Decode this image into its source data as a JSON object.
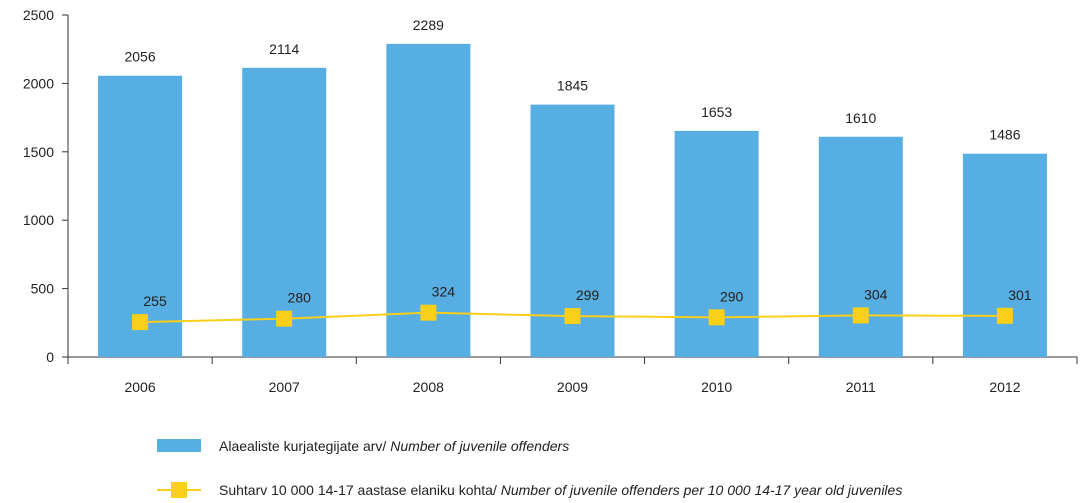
{
  "chart_data": {
    "type": "bar",
    "categories": [
      "2006",
      "2007",
      "2008",
      "2009",
      "2010",
      "2011",
      "2012"
    ],
    "ylim": [
      0,
      2500
    ],
    "yticks": [
      0,
      500,
      1000,
      1500,
      2000,
      2500
    ],
    "grid": false,
    "legend_placement": "bottom",
    "series": [
      {
        "name": "Alaealiste kurjategijate arv/ Number of juvenile offenders",
        "name_plain": "Alaealiste kurjategijate arv/ ",
        "name_italic": "Number of juvenile offenders",
        "type": "bar",
        "color": "#56aee2",
        "values": [
          2056,
          2114,
          2289,
          1845,
          1653,
          1610,
          1486
        ]
      },
      {
        "name": "Suhtarv 10 000 14-17 aastase elaniku kohta/ Number of juvenile offenders per 10 000 14-17 year old juveniles",
        "name_plain": "Suhtarv 10 000 14-17 aastase elaniku kohta/ ",
        "name_italic": "Number of juvenile offenders per 10 000 14-17 year old juveniles",
        "type": "line",
        "color": "#f9cf1a",
        "values": [
          255,
          280,
          324,
          299,
          290,
          304,
          301
        ]
      }
    ]
  }
}
